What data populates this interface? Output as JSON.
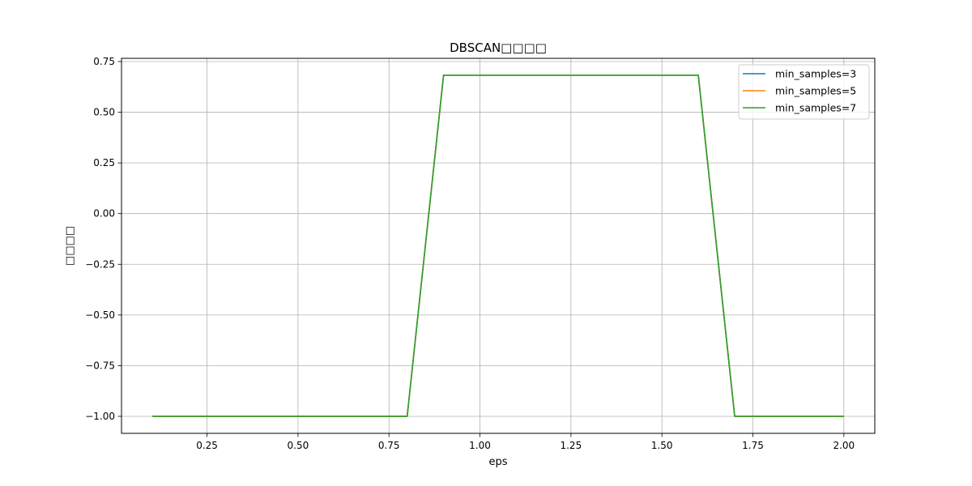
{
  "chart_data": {
    "type": "line",
    "title": "DBSCAN□□□□",
    "xlabel": "eps",
    "ylabel": "□□□□",
    "xlim": [
      0.015,
      2.085
    ],
    "ylim": [
      -1.084,
      0.766
    ],
    "xticks": [
      0.25,
      0.5,
      0.75,
      1.0,
      1.25,
      1.5,
      1.75,
      2.0
    ],
    "xtick_labels": [
      "0.25",
      "0.50",
      "0.75",
      "1.00",
      "1.25",
      "1.50",
      "1.75",
      "2.00"
    ],
    "yticks": [
      -1.0,
      -0.75,
      -0.5,
      -0.25,
      0.0,
      0.25,
      0.5,
      0.75
    ],
    "ytick_labels": [
      "−1.00",
      "−0.75",
      "−0.50",
      "−0.25",
      "0.00",
      "0.25",
      "0.50",
      "0.75"
    ],
    "grid": true,
    "legend_position": "top-right",
    "x": [
      0.1,
      0.2,
      0.3,
      0.4,
      0.5,
      0.6,
      0.7,
      0.8,
      0.9,
      1.0,
      1.1,
      1.2,
      1.3,
      1.4,
      1.5,
      1.6,
      1.7,
      1.8,
      1.9,
      2.0
    ],
    "series": [
      {
        "name": "min_samples=3",
        "color": "#1f77b4",
        "values": [
          -1,
          -1,
          -1,
          -1,
          -1,
          -1,
          -1,
          -1,
          0.683,
          0.683,
          0.683,
          0.683,
          0.683,
          0.683,
          0.683,
          0.683,
          -1,
          -1,
          -1,
          -1
        ]
      },
      {
        "name": "min_samples=5",
        "color": "#ff7f0e",
        "values": [
          -1,
          -1,
          -1,
          -1,
          -1,
          -1,
          -1,
          -1,
          0.683,
          0.683,
          0.683,
          0.683,
          0.683,
          0.683,
          0.683,
          0.683,
          -1,
          -1,
          -1,
          -1
        ]
      },
      {
        "name": "min_samples=7",
        "color": "#2ca02c",
        "values": [
          -1,
          -1,
          -1,
          -1,
          -1,
          -1,
          -1,
          -1,
          0.683,
          0.683,
          0.683,
          0.683,
          0.683,
          0.683,
          0.683,
          0.683,
          -1,
          -1,
          -1,
          -1
        ]
      }
    ]
  }
}
